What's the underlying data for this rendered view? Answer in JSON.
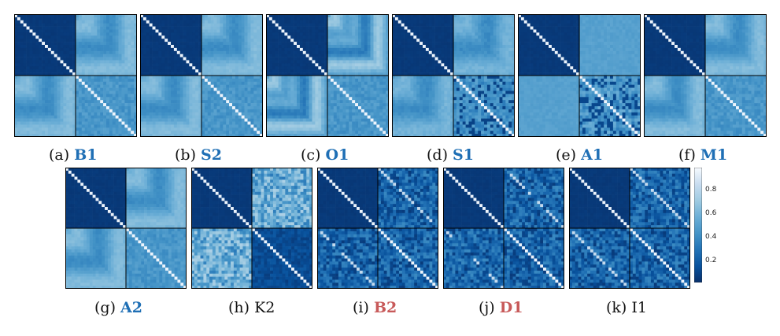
{
  "colors": {
    "blue_label": "#1f6fb5",
    "red_label": "#c85a5a",
    "plain_label": "#111111",
    "cmap": [
      "#08306b",
      "#08519c",
      "#2171b5",
      "#4292c6",
      "#6baed6",
      "#9ecae1",
      "#c6dbef",
      "#f7fbff"
    ]
  },
  "panels": [
    {
      "id": "B1",
      "caption_prefix": "(a)",
      "label": "B1",
      "label_color": "blue",
      "pattern": "smooth"
    },
    {
      "id": "S2",
      "caption_prefix": "(b)",
      "label": "S2",
      "label_color": "blue",
      "pattern": "smooth"
    },
    {
      "id": "O1",
      "caption_prefix": "(c)",
      "label": "O1",
      "label_color": "blue",
      "pattern": "smooth-strong"
    },
    {
      "id": "S1",
      "caption_prefix": "(d)",
      "label": "S1",
      "label_color": "blue",
      "pattern": "smooth-noisy-br"
    },
    {
      "id": "A1",
      "caption_prefix": "(e)",
      "label": "A1",
      "label_color": "blue",
      "pattern": "flat-noisy-br"
    },
    {
      "id": "M1",
      "caption_prefix": "(f)",
      "label": "M1",
      "label_color": "blue",
      "pattern": "smooth"
    },
    {
      "id": "A2",
      "caption_prefix": "(g)",
      "label": "A2",
      "label_color": "blue",
      "pattern": "smooth"
    },
    {
      "id": "K2",
      "caption_prefix": "(h)",
      "label": "K2",
      "label_color": "plain",
      "pattern": "noisy-light"
    },
    {
      "id": "B2",
      "caption_prefix": "(i)",
      "label": "B2",
      "label_color": "red",
      "pattern": "dark-noisy"
    },
    {
      "id": "D1",
      "caption_prefix": "(j)",
      "label": "D1",
      "label_color": "red",
      "pattern": "dark-noisy"
    },
    {
      "id": "I1",
      "caption_prefix": "(k)",
      "label": "I1",
      "label_color": "plain",
      "pattern": "dark-noisy"
    }
  ],
  "colorbar": {
    "ticks": [
      "0.8",
      "0.6",
      "0.4",
      "0.2"
    ],
    "tick_values": [
      0.8,
      0.6,
      0.4,
      0.2
    ],
    "range": [
      0.0,
      0.97
    ]
  }
}
